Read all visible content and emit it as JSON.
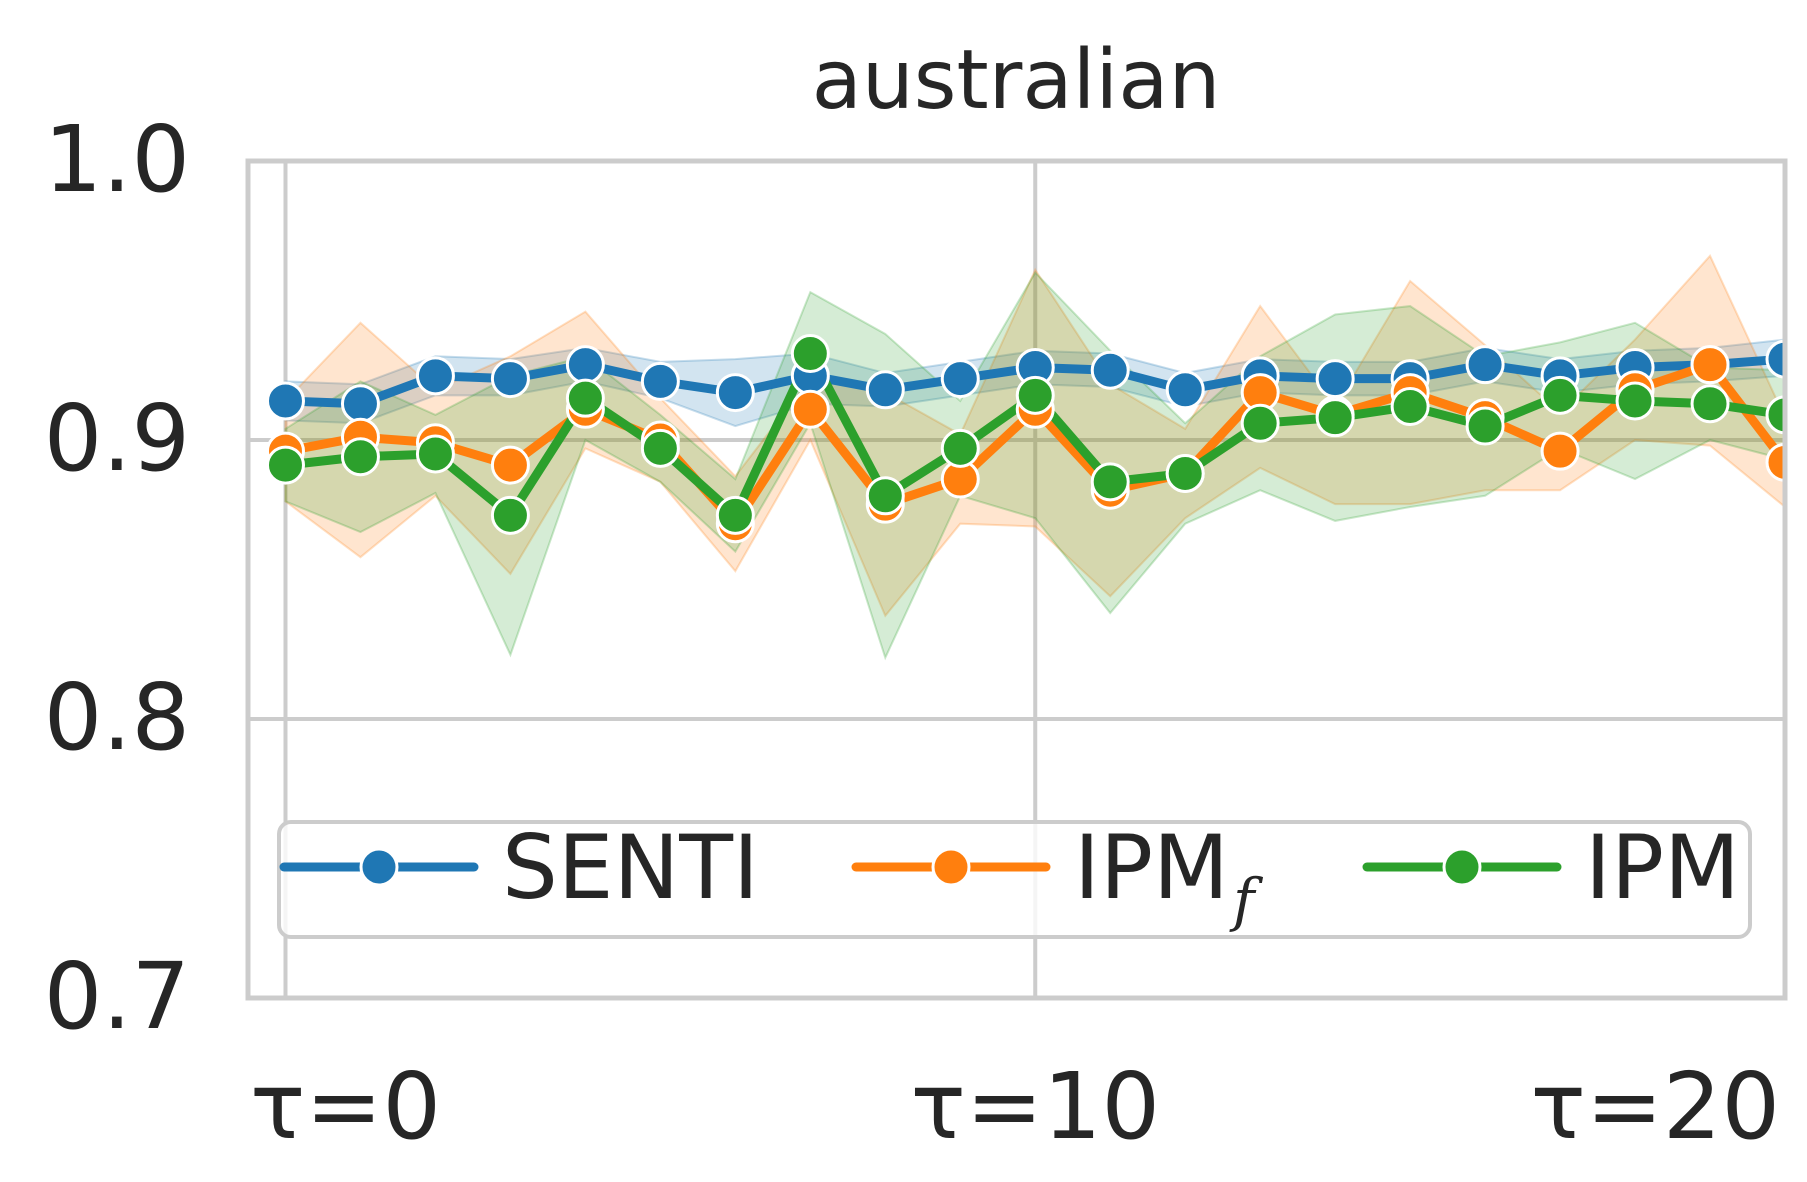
{
  "chart_data": {
    "type": "line",
    "title": "australian",
    "xlabel": "",
    "ylabel": "",
    "xlim": [
      0,
      20
    ],
    "ylim": [
      0.7,
      1.0
    ],
    "grid": true,
    "legend_position": "lower-center",
    "x": [
      0,
      1,
      2,
      3,
      4,
      5,
      6,
      7,
      8,
      9,
      10,
      11,
      12,
      13,
      14,
      15,
      16,
      17,
      18,
      19,
      20
    ],
    "x_ticks": [
      {
        "value": 0,
        "label": "τ=0"
      },
      {
        "value": 10,
        "label": "τ=10"
      },
      {
        "value": 20,
        "label": "τ=20"
      }
    ],
    "y_ticks": [
      {
        "value": 0.7,
        "label": "0.7"
      },
      {
        "value": 0.8,
        "label": "0.8"
      },
      {
        "value": 0.9,
        "label": "0.9"
      },
      {
        "value": 1.0,
        "label": "1.0"
      }
    ],
    "series": [
      {
        "name": "SENTI",
        "name_sub": "",
        "color": "#1f77b4",
        "values": [
          0.914,
          0.913,
          0.923,
          0.922,
          0.927,
          0.921,
          0.917,
          0.923,
          0.918,
          0.922,
          0.926,
          0.925,
          0.918,
          0.923,
          0.922,
          0.922,
          0.927,
          0.923,
          0.926,
          0.927,
          0.929
        ],
        "lower": [
          0.907,
          0.906,
          0.916,
          0.916,
          0.921,
          0.915,
          0.905,
          0.913,
          0.912,
          0.916,
          0.92,
          0.919,
          0.912,
          0.917,
          0.916,
          0.916,
          0.921,
          0.917,
          0.92,
          0.921,
          0.923
        ],
        "upper": [
          0.921,
          0.92,
          0.93,
          0.929,
          0.933,
          0.928,
          0.929,
          0.931,
          0.924,
          0.928,
          0.932,
          0.931,
          0.924,
          0.929,
          0.928,
          0.928,
          0.933,
          0.929,
          0.932,
          0.933,
          0.936
        ]
      },
      {
        "name": "IPM",
        "name_sub": "f",
        "color": "#ff7f0e",
        "values": [
          0.896,
          0.901,
          0.899,
          0.891,
          0.911,
          0.9,
          0.87,
          0.911,
          0.877,
          0.886,
          0.911,
          0.882,
          0.888,
          0.917,
          0.909,
          0.917,
          0.908,
          0.896,
          0.918,
          0.927,
          0.892
        ],
        "lower": [
          0.878,
          0.858,
          0.88,
          0.852,
          0.897,
          0.885,
          0.853,
          0.9,
          0.837,
          0.87,
          0.869,
          0.844,
          0.872,
          0.89,
          0.877,
          0.877,
          0.882,
          0.882,
          0.9,
          0.898,
          0.876
        ],
        "upper": [
          0.914,
          0.942,
          0.918,
          0.93,
          0.946,
          0.915,
          0.887,
          0.922,
          0.917,
          0.902,
          0.961,
          0.92,
          0.904,
          0.948,
          0.912,
          0.957,
          0.934,
          0.91,
          0.936,
          0.966,
          0.908
        ]
      },
      {
        "name": "IPM",
        "name_sub": "",
        "color": "#2ca02c",
        "values": [
          0.891,
          0.894,
          0.895,
          0.873,
          0.915,
          0.897,
          0.873,
          0.931,
          0.88,
          0.897,
          0.916,
          0.885,
          0.888,
          0.906,
          0.908,
          0.912,
          0.905,
          0.916,
          0.914,
          0.913,
          0.909
        ],
        "lower": [
          0.878,
          0.867,
          0.881,
          0.823,
          0.9,
          0.885,
          0.86,
          0.906,
          0.822,
          0.88,
          0.872,
          0.838,
          0.87,
          0.882,
          0.871,
          0.876,
          0.88,
          0.897,
          0.886,
          0.9,
          0.893
        ],
        "upper": [
          0.904,
          0.921,
          0.909,
          0.923,
          0.93,
          0.909,
          0.886,
          0.953,
          0.938,
          0.914,
          0.96,
          0.932,
          0.906,
          0.93,
          0.945,
          0.948,
          0.93,
          0.935,
          0.942,
          0.926,
          0.925
        ]
      }
    ]
  }
}
